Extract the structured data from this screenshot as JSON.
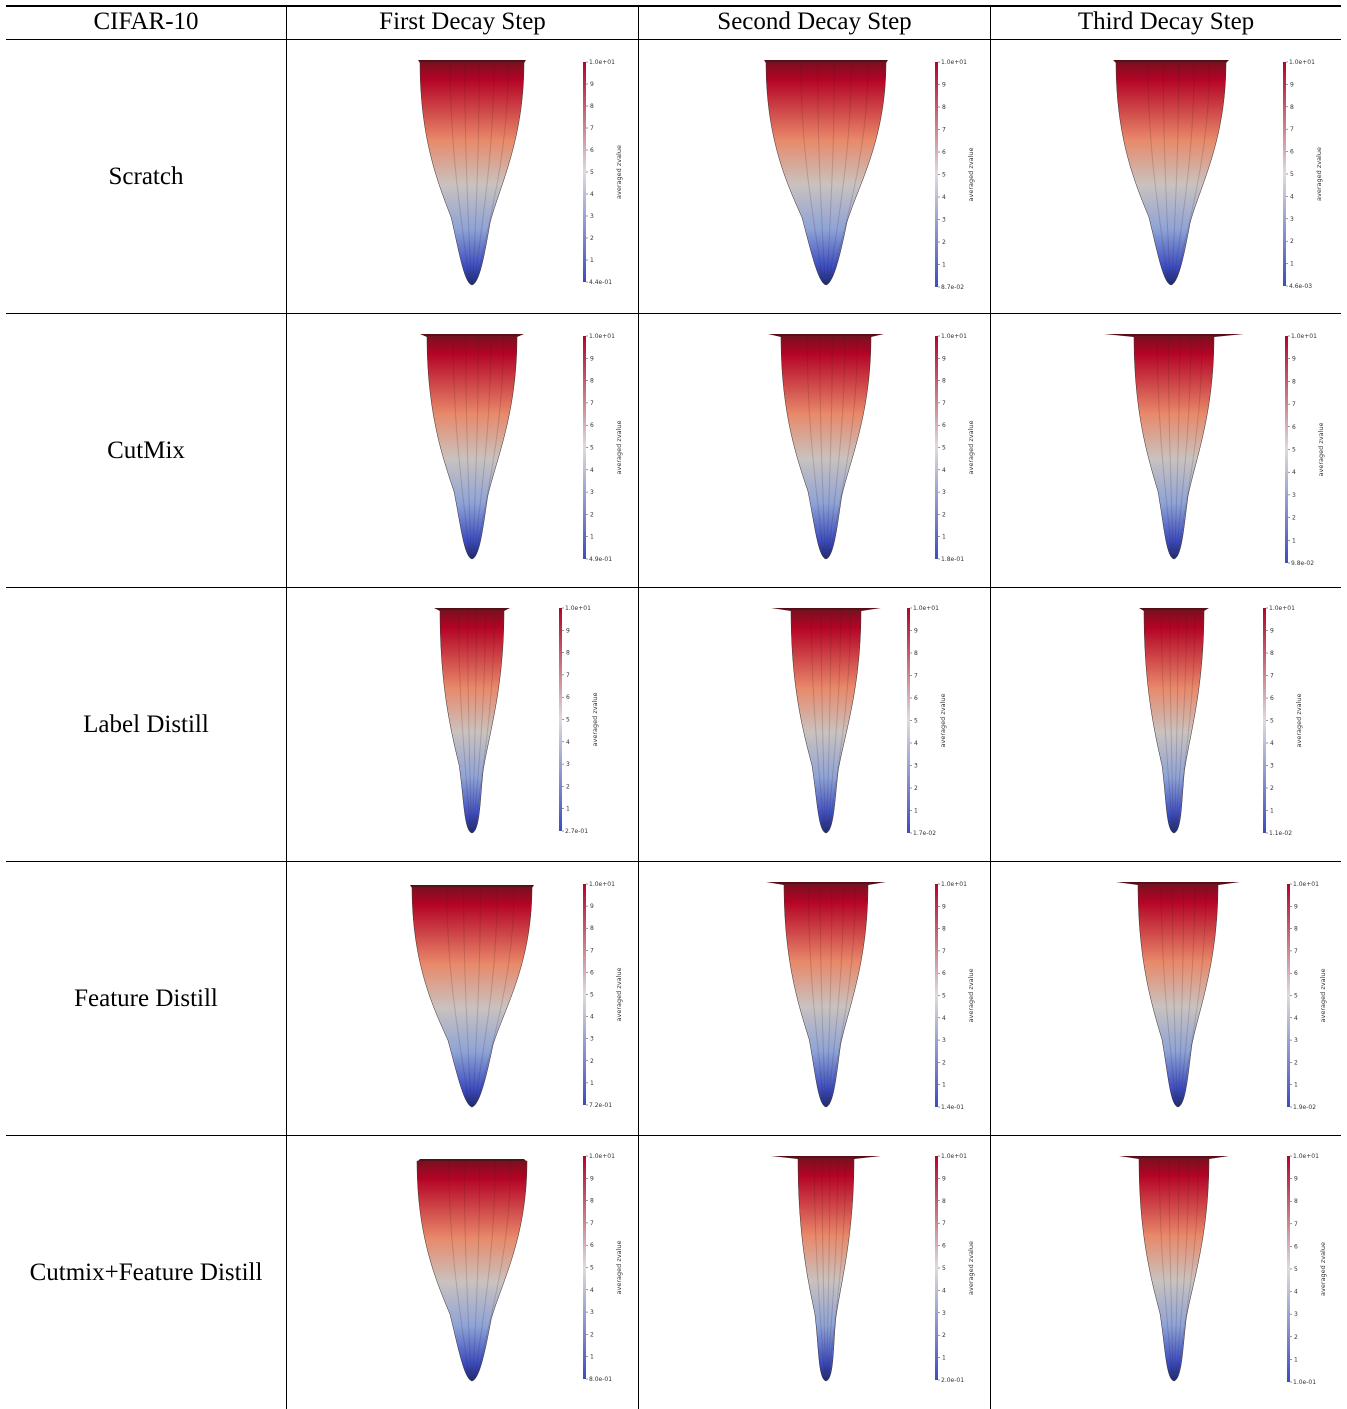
{
  "table": {
    "corner_label": "CIFAR-10",
    "columns": [
      "First Decay Step",
      "Second Decay Step",
      "Third Decay Step"
    ],
    "rows": [
      {
        "label": "Scratch",
        "mins": [
          "4.4e-01",
          "8.7e-02",
          "4.6e-03"
        ]
      },
      {
        "label": "CutMix",
        "mins": [
          "4.9e-01",
          "1.8e-01",
          "9.8e-02"
        ]
      },
      {
        "label": "Label Distill",
        "mins": [
          "2.7e-01",
          "1.7e-02",
          "1.1e-02"
        ]
      },
      {
        "label": "Feature Distill",
        "mins": [
          "7.2e-01",
          "1.4e-01",
          "1.9e-02"
        ]
      },
      {
        "label": "Cutmix+Feature Distill",
        "mins": [
          "8.0e-01",
          "2.0e-01",
          "1.0e-01"
        ]
      }
    ]
  },
  "colorbar": {
    "title": "averaged zvalue",
    "max_label": "1.0e+01",
    "ticks": [
      "9",
      "8",
      "7",
      "6",
      "5",
      "4",
      "3",
      "2",
      "1"
    ],
    "colors": {
      "high": "#b40426",
      "mid": "#dddcdc",
      "low": "#3b4cc0"
    }
  }
}
